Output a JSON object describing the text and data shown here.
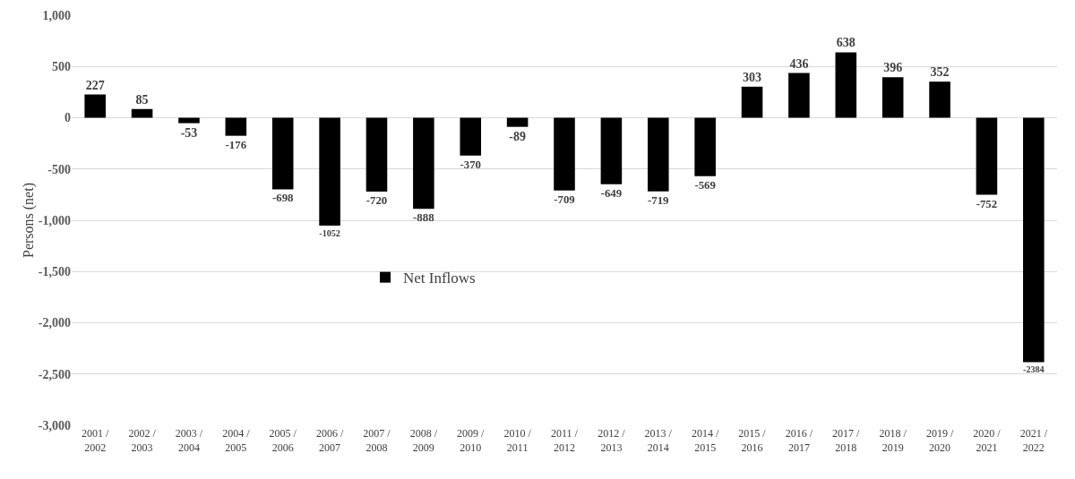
{
  "chart_data": {
    "type": "bar",
    "ylabel": "Persons (net)",
    "categories": [
      "2001 /\n2002",
      "2002 /\n2003",
      "2003 /\n2004",
      "2004 /\n2005",
      "2005 /\n2006",
      "2006 /\n2007",
      "2007 /\n2008",
      "2008 /\n2009",
      "2009 /\n2010",
      "2010 /\n2011",
      "2011 /\n2012",
      "2012 /\n2013",
      "2013 /\n2014",
      "2014 /\n2015",
      "2015 /\n2016",
      "2016 /\n2017",
      "2017 /\n2018",
      "2018 /\n2019",
      "2019 /\n2020",
      "2020 /\n2021",
      "2021 /\n2022"
    ],
    "series": [
      {
        "name": "Net Inflows",
        "color": "#000000",
        "values": [
          227,
          85,
          -53,
          -176,
          -698,
          -1052,
          -720,
          -888,
          -370,
          -89,
          -709,
          -649,
          -719,
          -569,
          303,
          436,
          638,
          396,
          352,
          -752,
          -2384
        ]
      }
    ],
    "ylim": [
      -3000,
      1000
    ],
    "yticks": [
      {
        "value": -3000,
        "label": "-3,000"
      },
      {
        "value": -2500,
        "label": "-2,500"
      },
      {
        "value": -2000,
        "label": "-2,000"
      },
      {
        "value": -1500,
        "label": "-1,500"
      },
      {
        "value": -1000,
        "label": "-1,000"
      },
      -500,
      0,
      500,
      {
        "value": 1000,
        "label": "1,000"
      }
    ],
    "grid": "y",
    "legend": "center",
    "data_labels": true
  }
}
